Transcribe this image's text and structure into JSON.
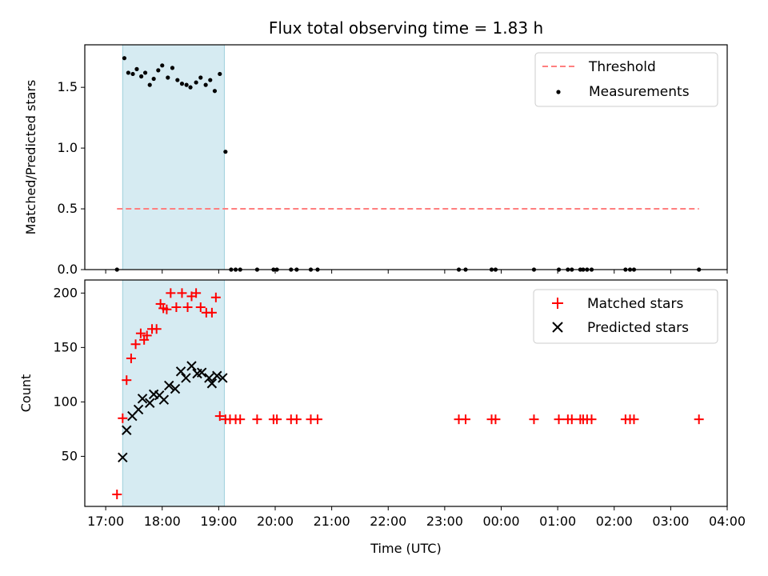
{
  "chart_data": [
    {
      "type": "scatter",
      "title": "Flux total observing time = 1.83 h",
      "xlabel": "",
      "ylabel": "Matched/Predicted stars",
      "ylim": [
        0,
        1.85
      ],
      "yticks": [
        0.0,
        0.5,
        1.0,
        1.5
      ],
      "ytick_labels": [
        "0.0",
        "0.5",
        "1.0",
        "1.5"
      ],
      "highlight_span_hours": [
        17.3,
        19.1
      ],
      "highlight_color": "#add8e6",
      "legend": {
        "placement": "top-right",
        "entries": [
          "Threshold",
          "Measurements"
        ]
      },
      "series": [
        {
          "name": "Threshold",
          "kind": "dashed-line",
          "color": "#ff7f7f",
          "x": [
            17.2,
            27.5
          ],
          "y": [
            0.5,
            0.5
          ]
        },
        {
          "name": "Measurements",
          "kind": "points",
          "color": "#000000",
          "x": [
            17.2,
            17.33,
            17.4,
            17.48,
            17.55,
            17.63,
            17.7,
            17.78,
            17.85,
            17.93,
            18.0,
            18.1,
            18.18,
            18.27,
            18.35,
            18.43,
            18.5,
            18.6,
            18.68,
            18.77,
            18.85,
            18.93,
            19.02,
            19.12,
            19.22,
            19.3,
            19.38,
            19.68,
            19.97,
            20.03,
            20.28,
            20.38,
            20.63,
            20.75,
            23.25,
            23.37,
            23.83,
            23.9,
            24.58,
            25.02,
            25.18,
            25.25,
            25.4,
            25.45,
            25.52,
            25.6,
            26.2,
            26.28,
            26.35,
            27.5
          ],
          "y": [
            0.0,
            1.74,
            1.62,
            1.61,
            1.65,
            1.59,
            1.62,
            1.52,
            1.57,
            1.64,
            1.68,
            1.58,
            1.66,
            1.56,
            1.53,
            1.52,
            1.5,
            1.54,
            1.58,
            1.52,
            1.56,
            1.47,
            1.61,
            0.97,
            0.0,
            0.0,
            0.0,
            0.0,
            0.0,
            0.0,
            0.0,
            0.0,
            0.0,
            0.0,
            0.0,
            0.0,
            0.0,
            0.0,
            0.0,
            0.0,
            0.0,
            0.0,
            0.0,
            0.0,
            0.0,
            0.0,
            0.0,
            0.0,
            0.0,
            0.0
          ]
        }
      ]
    },
    {
      "type": "scatter",
      "title": "",
      "xlabel": "Time (UTC)",
      "ylabel": "Count",
      "xlim": [
        16.63,
        28.0
      ],
      "xticks": [
        17,
        18,
        19,
        20,
        21,
        22,
        23,
        24,
        25,
        26,
        27,
        28
      ],
      "xtick_labels": [
        "17:00",
        "18:00",
        "19:00",
        "20:00",
        "21:00",
        "22:00",
        "23:00",
        "00:00",
        "01:00",
        "02:00",
        "03:00",
        "04:00"
      ],
      "ylim": [
        4,
        212
      ],
      "yticks": [
        50,
        100,
        150,
        200
      ],
      "ytick_labels": [
        "50",
        "100",
        "150",
        "200"
      ],
      "highlight_span_hours": [
        17.3,
        19.1
      ],
      "highlight_color": "#add8e6",
      "legend": {
        "placement": "top-right",
        "entries": [
          "Matched stars",
          "Predicted stars"
        ]
      },
      "series": [
        {
          "name": "Matched stars",
          "marker": "plus",
          "color": "#ff0000",
          "x": [
            17.2,
            17.3,
            17.37,
            17.45,
            17.53,
            17.62,
            17.68,
            17.73,
            17.82,
            17.9,
            17.97,
            18.02,
            18.08,
            18.15,
            18.25,
            18.35,
            18.45,
            18.52,
            18.6,
            18.68,
            18.78,
            18.88,
            18.95,
            19.02,
            19.12,
            19.2,
            19.3,
            19.38,
            19.68,
            19.97,
            20.03,
            20.28,
            20.38,
            20.63,
            20.75,
            23.25,
            23.37,
            23.83,
            23.9,
            24.58,
            25.02,
            25.18,
            25.25,
            25.4,
            25.45,
            25.52,
            25.6,
            26.2,
            26.28,
            26.35,
            27.5
          ],
          "y": [
            15,
            85,
            120,
            140,
            153,
            163,
            157,
            161,
            167,
            167,
            190,
            186,
            185,
            200,
            187,
            200,
            187,
            197,
            200,
            187,
            182,
            182,
            196,
            87,
            84,
            84,
            84,
            84,
            84,
            84,
            84,
            84,
            84,
            84,
            84,
            84,
            84,
            84,
            84,
            84,
            84,
            84,
            84,
            84,
            84,
            84,
            84,
            84,
            84,
            84,
            84
          ]
        },
        {
          "name": "Predicted stars",
          "marker": "x",
          "color": "#000000",
          "x": [
            17.3,
            17.37,
            17.47,
            17.58,
            17.65,
            17.78,
            17.85,
            17.95,
            18.03,
            18.12,
            18.23,
            18.33,
            18.42,
            18.52,
            18.62,
            18.7,
            18.83,
            18.88,
            18.97,
            19.07
          ],
          "y": [
            49,
            74,
            87,
            93,
            103,
            99,
            107,
            106,
            102,
            115,
            112,
            128,
            122,
            133,
            126,
            127,
            122,
            117,
            124,
            122
          ]
        }
      ]
    }
  ]
}
